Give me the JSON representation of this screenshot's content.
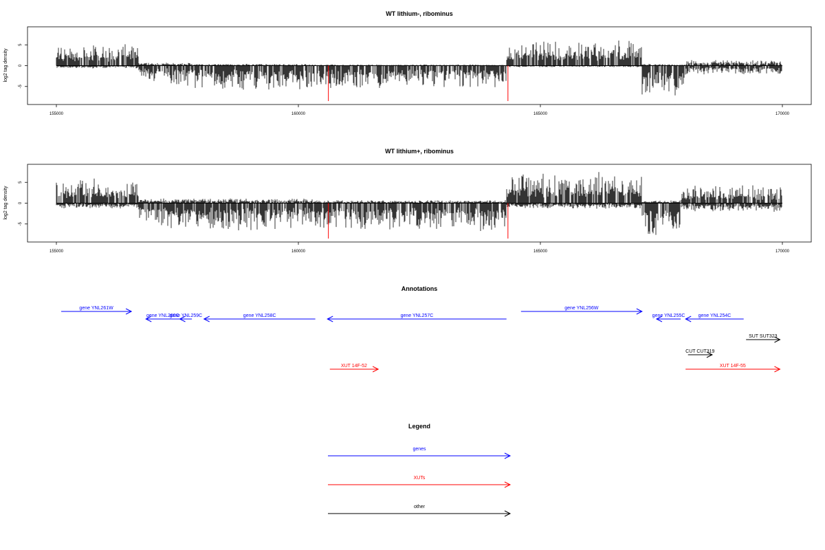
{
  "chart_data": [
    {
      "type": "bar",
      "panel": "track",
      "title": "WT lithium-, ribominus",
      "ylabel": "log2 tag density",
      "xlim": [
        155000,
        170000
      ],
      "ylim": [
        -9,
        9
      ],
      "xticks": [
        "155000",
        "160000",
        "165000",
        "170000"
      ],
      "yticks": [
        "5",
        "0",
        "-5"
      ],
      "grid": false,
      "series_color": "#000000",
      "density_profile": [
        {
          "x": [
            155000,
            156700
          ],
          "pos": 3.5,
          "neg": 0.5
        },
        {
          "x": [
            156700,
            157300
          ],
          "pos": 0.6,
          "neg": 3.0
        },
        {
          "x": [
            157300,
            157800
          ],
          "pos": 0.5,
          "neg": 4.0
        },
        {
          "x": [
            157800,
            160300
          ],
          "pos": 0.3,
          "neg": 4.5
        },
        {
          "x": [
            160300,
            164300
          ],
          "pos": 0.2,
          "neg": 4.0
        },
        {
          "x": [
            164300,
            167100
          ],
          "pos": 4.2,
          "neg": 0.3
        },
        {
          "x": [
            167100,
            168000
          ],
          "pos": 0.3,
          "neg": 6.0
        },
        {
          "x": [
            168000,
            170000
          ],
          "pos": 1.0,
          "neg": 1.5
        }
      ],
      "markers": [
        {
          "x": 160620,
          "value": -8.5,
          "color": "#ff0000"
        },
        {
          "x": 164330,
          "value": -8.5,
          "color": "#ff0000"
        }
      ]
    },
    {
      "type": "bar",
      "panel": "track",
      "title": "WT lithium+, ribominus",
      "ylabel": "log2 tag density",
      "xlim": [
        155000,
        170000
      ],
      "ylim": [
        -9,
        9
      ],
      "xticks": [
        "155000",
        "160000",
        "165000",
        "170000"
      ],
      "yticks": [
        "5",
        "0",
        "-5"
      ],
      "grid": false,
      "series_color": "#000000",
      "density_profile": [
        {
          "x": [
            155000,
            156700
          ],
          "pos": 4.0,
          "neg": 1.0
        },
        {
          "x": [
            156700,
            157300
          ],
          "pos": 0.8,
          "neg": 4.0
        },
        {
          "x": [
            157300,
            157800
          ],
          "pos": 0.8,
          "neg": 5.0
        },
        {
          "x": [
            157800,
            160300
          ],
          "pos": 0.8,
          "neg": 5.0
        },
        {
          "x": [
            160300,
            164300
          ],
          "pos": 0.5,
          "neg": 5.0
        },
        {
          "x": [
            164300,
            167100
          ],
          "pos": 5.0,
          "neg": 1.0
        },
        {
          "x": [
            167100,
            167900
          ],
          "pos": 0.5,
          "neg": 6.0
        },
        {
          "x": [
            167900,
            170000
          ],
          "pos": 3.0,
          "neg": 1.5
        }
      ],
      "markers": [
        {
          "x": 160620,
          "value": -8.5,
          "color": "#ff0000"
        },
        {
          "x": 164330,
          "value": -8.5,
          "color": "#ff0000"
        }
      ]
    },
    {
      "type": "annotation",
      "title": "Annotations",
      "xlim": [
        155000,
        170000
      ],
      "features": [
        {
          "label": "gene YNL261W",
          "start": 155100,
          "end": 156550,
          "strand": "+",
          "row": 0,
          "color": "#0000ff"
        },
        {
          "label": "gene YNL260C",
          "start": 156850,
          "end": 157550,
          "strand": "-",
          "row": 1,
          "color": "#0000ff"
        },
        {
          "label": "gene YNL259C",
          "start": 157550,
          "end": 157800,
          "strand": "-",
          "row": 1,
          "color": "#0000ff"
        },
        {
          "label": "gene YNL258C",
          "start": 158050,
          "end": 160350,
          "strand": "-",
          "row": 1,
          "color": "#0000ff"
        },
        {
          "label": "gene YNL257C",
          "start": 160600,
          "end": 164300,
          "strand": "-",
          "row": 1,
          "color": "#0000ff"
        },
        {
          "label": "gene YNL256W",
          "start": 164600,
          "end": 167100,
          "strand": "+",
          "row": 0,
          "color": "#0000ff"
        },
        {
          "label": "gene YNL255C",
          "start": 167400,
          "end": 167900,
          "strand": "-",
          "row": 1,
          "color": "#0000ff"
        },
        {
          "label": "gene YNL254C",
          "start": 168000,
          "end": 169200,
          "strand": "-",
          "row": 1,
          "color": "#0000ff"
        },
        {
          "label": "SUT SUT323",
          "start": 169250,
          "end": 169950,
          "strand": "+",
          "row": 2,
          "color": "#000000"
        },
        {
          "label": "CUT CUT319",
          "start": 168050,
          "end": 168550,
          "strand": "+",
          "row": 3,
          "color": "#000000"
        },
        {
          "label": "XUT 14F-52",
          "start": 160650,
          "end": 161650,
          "strand": "+",
          "row": 4,
          "color": "#ff0000"
        },
        {
          "label": "XUT 14F-55",
          "start": 168000,
          "end": 169950,
          "strand": "+",
          "row": 4,
          "color": "#ff0000"
        }
      ]
    }
  ],
  "legend": {
    "title": "Legend",
    "items": [
      {
        "label": "genes",
        "color": "#0000ff"
      },
      {
        "label": "XUTs",
        "color": "#ff0000"
      },
      {
        "label": "other",
        "color": "#000000"
      }
    ]
  }
}
